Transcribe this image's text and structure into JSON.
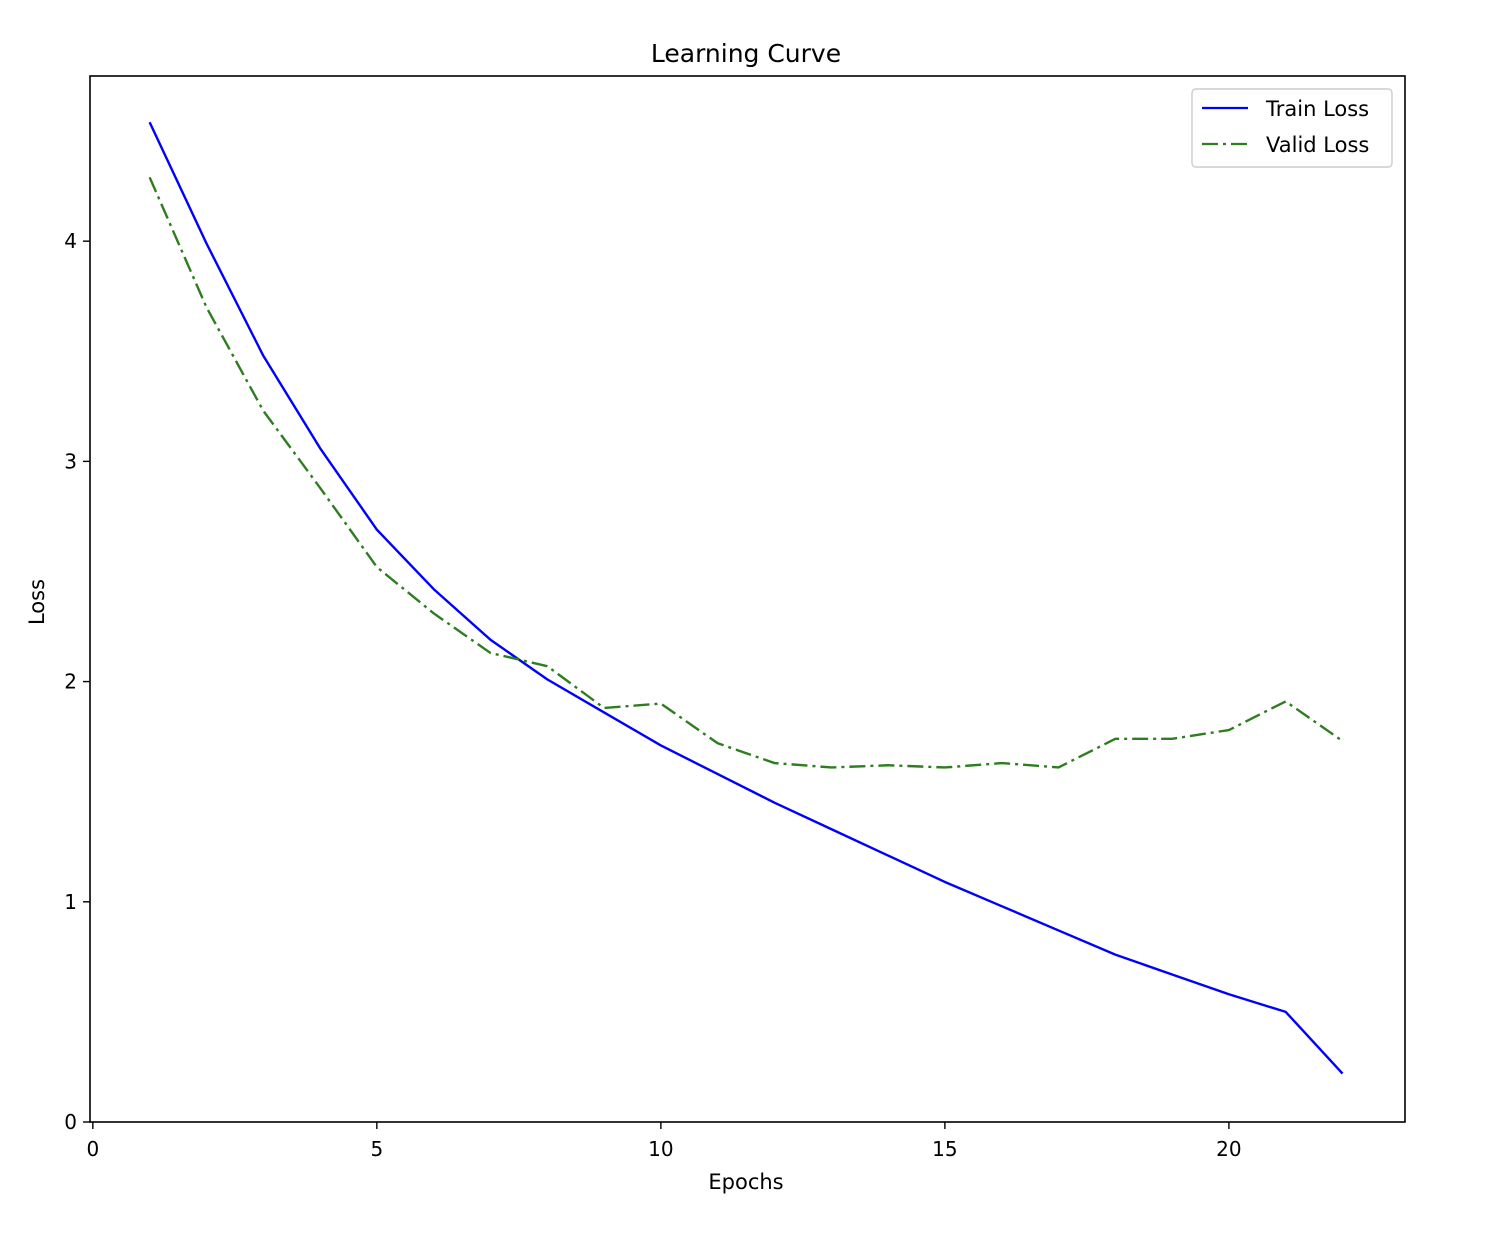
{
  "chart_data": {
    "type": "line",
    "title": "Learning Curve",
    "xlabel": "Epochs",
    "ylabel": "Loss",
    "xlim": [
      -0.05,
      23.1
    ],
    "ylim": [
      0,
      4.75
    ],
    "xticks": [
      0,
      5,
      10,
      15,
      20
    ],
    "yticks": [
      0,
      1,
      2,
      3,
      4
    ],
    "grid": false,
    "legend_position": "top-right",
    "x": [
      1,
      2,
      3,
      4,
      5,
      6,
      7,
      8,
      9,
      10,
      11,
      12,
      13,
      14,
      15,
      16,
      17,
      18,
      19,
      20,
      21,
      22
    ],
    "series": [
      {
        "name": "Train Loss",
        "color": "#0000ff",
        "style": "solid",
        "values": [
          4.54,
          3.99,
          3.48,
          3.06,
          2.69,
          2.42,
          2.19,
          2.01,
          1.86,
          1.71,
          1.58,
          1.45,
          1.33,
          1.21,
          1.09,
          0.98,
          0.87,
          0.76,
          0.67,
          0.58,
          0.5,
          0.22
        ]
      },
      {
        "name": "Valid Loss",
        "color": "#2e7d1f",
        "style": "dashdot",
        "values": [
          4.29,
          3.7,
          3.23,
          2.88,
          2.52,
          2.31,
          2.13,
          2.07,
          1.88,
          1.9,
          1.72,
          1.63,
          1.61,
          1.62,
          1.61,
          1.63,
          1.61,
          1.74,
          1.74,
          1.78,
          1.91,
          1.73
        ]
      }
    ]
  }
}
